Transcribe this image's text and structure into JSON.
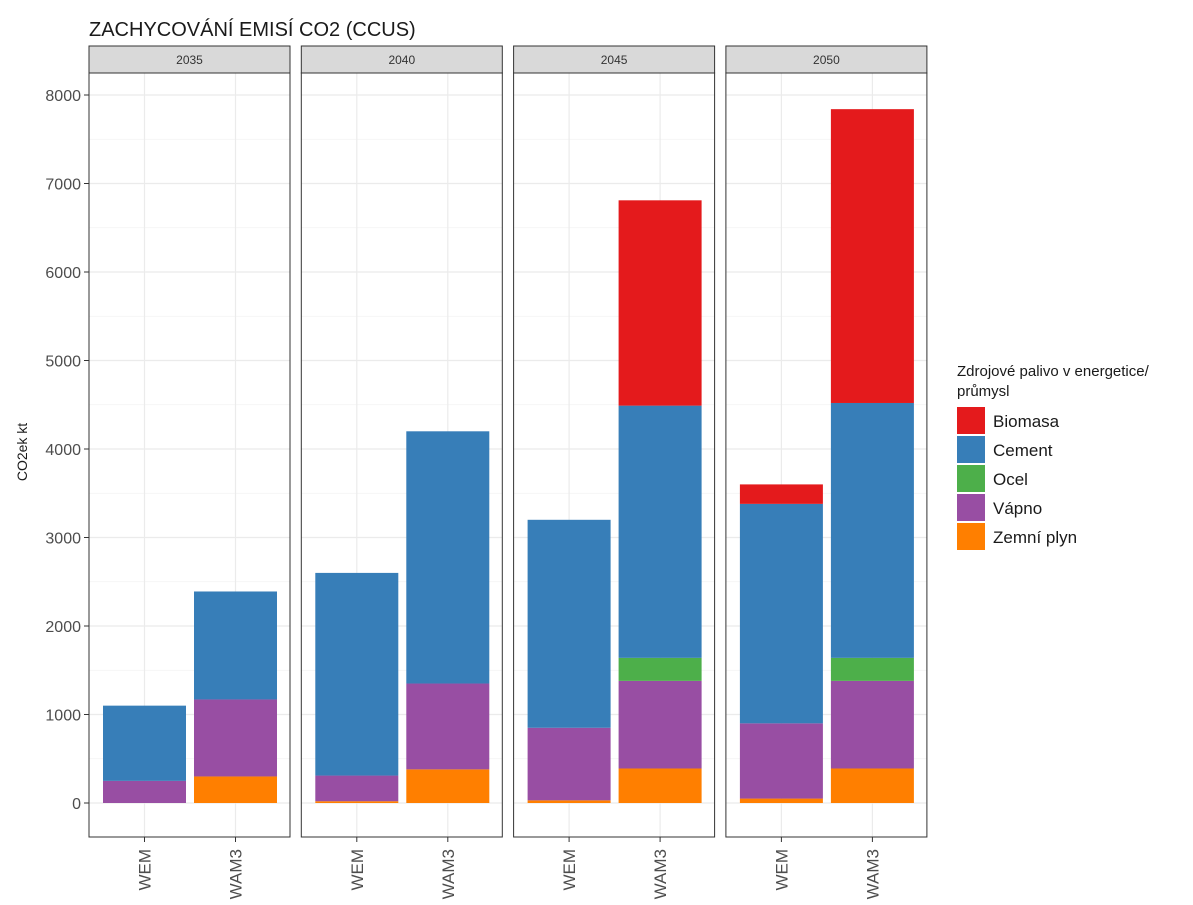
{
  "chart_data": {
    "type": "bar",
    "stacked": true,
    "title": "ZACHYCOVÁNÍ EMISÍ CO2 (CCUS)",
    "ylabel": "CO2ek kt",
    "xlabel": "",
    "ylim": [
      0,
      8000
    ],
    "yticks": [
      0,
      1000,
      2000,
      3000,
      4000,
      5000,
      6000,
      7000,
      8000
    ],
    "grid": true,
    "legend_position": "right",
    "legend_title": "Zdrojové palivo v energetice/ průmysl",
    "legend_title_lines": [
      "Zdrojové palivo v energetice/",
      "průmysl"
    ],
    "panels": [
      "2035",
      "2040",
      "2045",
      "2050"
    ],
    "categories": [
      "WEM",
      "WAM3"
    ],
    "legend_order": [
      "Biomasa",
      "Cement",
      "Ocel",
      "Vápno",
      "Zemní plyn"
    ],
    "series": [
      {
        "name": "Zemní plyn",
        "color": "#ff7f00",
        "values": {
          "2035": [
            0,
            300
          ],
          "2040": [
            20,
            380
          ],
          "2045": [
            30,
            390
          ],
          "2050": [
            50,
            390
          ]
        }
      },
      {
        "name": "Vápno",
        "color": "#984ea3",
        "values": {
          "2035": [
            250,
            870
          ],
          "2040": [
            290,
            970
          ],
          "2045": [
            820,
            990
          ],
          "2050": [
            850,
            990
          ]
        }
      },
      {
        "name": "Ocel",
        "color": "#4daf4a",
        "values": {
          "2035": [
            0,
            0
          ],
          "2040": [
            0,
            0
          ],
          "2045": [
            0,
            260
          ],
          "2050": [
            0,
            260
          ]
        }
      },
      {
        "name": "Cement",
        "color": "#377eb8",
        "values": {
          "2035": [
            850,
            1220
          ],
          "2040": [
            2290,
            2850
          ],
          "2045": [
            2350,
            2850
          ],
          "2050": [
            2480,
            2880
          ]
        }
      },
      {
        "name": "Biomasa",
        "color": "#e41a1c",
        "values": {
          "2035": [
            0,
            0
          ],
          "2040": [
            0,
            0
          ],
          "2045": [
            0,
            2320
          ],
          "2050": [
            220,
            3320
          ]
        }
      }
    ]
  }
}
